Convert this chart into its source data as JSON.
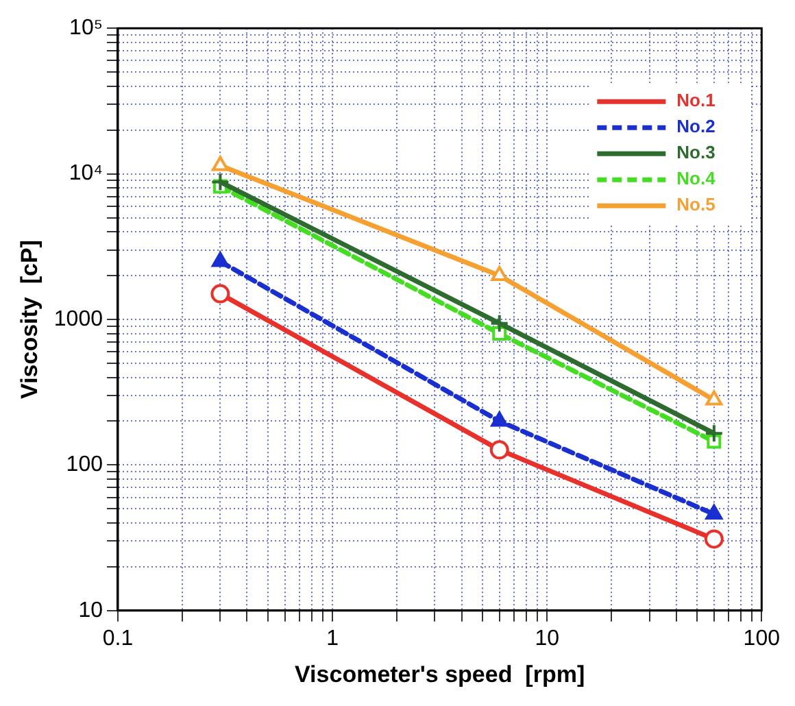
{
  "chart_data": {
    "type": "line",
    "xlabel": "Viscometer's speed  [rpm]",
    "ylabel": "Viscosity  [cP]",
    "log": "xy",
    "xlim": [
      0.1,
      100
    ],
    "ylim": [
      10,
      100000
    ],
    "xticks": [
      {
        "value": 0.1,
        "label": "0.1"
      },
      {
        "value": 0.2,
        "label": null
      },
      {
        "value": 0.3,
        "label": null
      },
      {
        "value": 0.4,
        "label": null
      },
      {
        "value": 0.5,
        "label": null
      },
      {
        "value": 0.6,
        "label": null
      },
      {
        "value": 0.7,
        "label": null
      },
      {
        "value": 0.8,
        "label": null
      },
      {
        "value": 0.9,
        "label": null
      },
      1,
      {
        "value": 2,
        "label": null
      },
      {
        "value": 3,
        "label": null
      },
      {
        "value": 4,
        "label": null
      },
      {
        "value": 5,
        "label": null
      },
      {
        "value": 6,
        "label": null
      },
      {
        "value": 7,
        "label": null
      },
      {
        "value": 8,
        "label": null
      },
      {
        "value": 9,
        "label": null
      },
      10,
      {
        "value": 20,
        "label": null
      },
      {
        "value": 30,
        "label": null
      },
      {
        "value": 40,
        "label": null
      },
      {
        "value": 50,
        "label": null
      },
      {
        "value": 60,
        "label": null
      },
      {
        "value": 70,
        "label": null
      },
      {
        "value": 80,
        "label": null
      },
      {
        "value": 90,
        "label": null
      },
      100
    ],
    "yticks": [
      10,
      {
        "value": 20,
        "label": null
      },
      {
        "value": 30,
        "label": null
      },
      {
        "value": 40,
        "label": null
      },
      {
        "value": 50,
        "label": null
      },
      {
        "value": 60,
        "label": null
      },
      {
        "value": 70,
        "label": null
      },
      {
        "value": 80,
        "label": null
      },
      {
        "value": 90,
        "label": null
      },
      100,
      {
        "value": 200,
        "label": null
      },
      {
        "value": 300,
        "label": null
      },
      {
        "value": 400,
        "label": null
      },
      {
        "value": 500,
        "label": null
      },
      {
        "value": 600,
        "label": null
      },
      {
        "value": 700,
        "label": null
      },
      {
        "value": 800,
        "label": null
      },
      {
        "value": 900,
        "label": null
      },
      1000,
      {
        "value": 2000,
        "label": null
      },
      {
        "value": 3000,
        "label": null
      },
      {
        "value": 4000,
        "label": null
      },
      {
        "value": 5000,
        "label": null
      },
      {
        "value": 6000,
        "label": null
      },
      {
        "value": 7000,
        "label": null
      },
      {
        "value": 8000,
        "label": null
      },
      {
        "value": 9000,
        "label": null
      },
      {
        "value": 10000,
        "label": "10⁴"
      },
      {
        "value": 20000,
        "label": null
      },
      {
        "value": 30000,
        "label": null
      },
      {
        "value": 40000,
        "label": null
      },
      {
        "value": 50000,
        "label": null
      },
      {
        "value": 60000,
        "label": null
      },
      {
        "value": 70000,
        "label": null
      },
      {
        "value": 80000,
        "label": null
      },
      {
        "value": 90000,
        "label": null
      },
      {
        "value": 100000,
        "label": "10⁵"
      }
    ],
    "grid": true,
    "legend": "top right",
    "x": [
      0.3,
      6,
      60
    ],
    "series": [
      {
        "name": "No.1",
        "color": "#e8312a",
        "values": [
          1500,
          127,
          31
        ],
        "marker": "circle",
        "line_style": "solid"
      },
      {
        "name": "No.2",
        "color": "#1a2fd0",
        "values": [
          2500,
          200,
          46
        ],
        "marker": "triangle",
        "line_style": "dashed"
      },
      {
        "name": "No.3",
        "color": "#2e6b2e",
        "values": [
          8800,
          940,
          165
        ],
        "marker": "cross",
        "line_style": "solid"
      },
      {
        "name": "No.4",
        "color": "#44dd22",
        "values": [
          8200,
          800,
          145
        ],
        "marker": "square",
        "line_style": "dashed"
      },
      {
        "name": "No.5",
        "color": "#f5a030",
        "values": [
          11400,
          2000,
          280
        ],
        "marker": "triangle",
        "line_style": "solid"
      }
    ]
  }
}
